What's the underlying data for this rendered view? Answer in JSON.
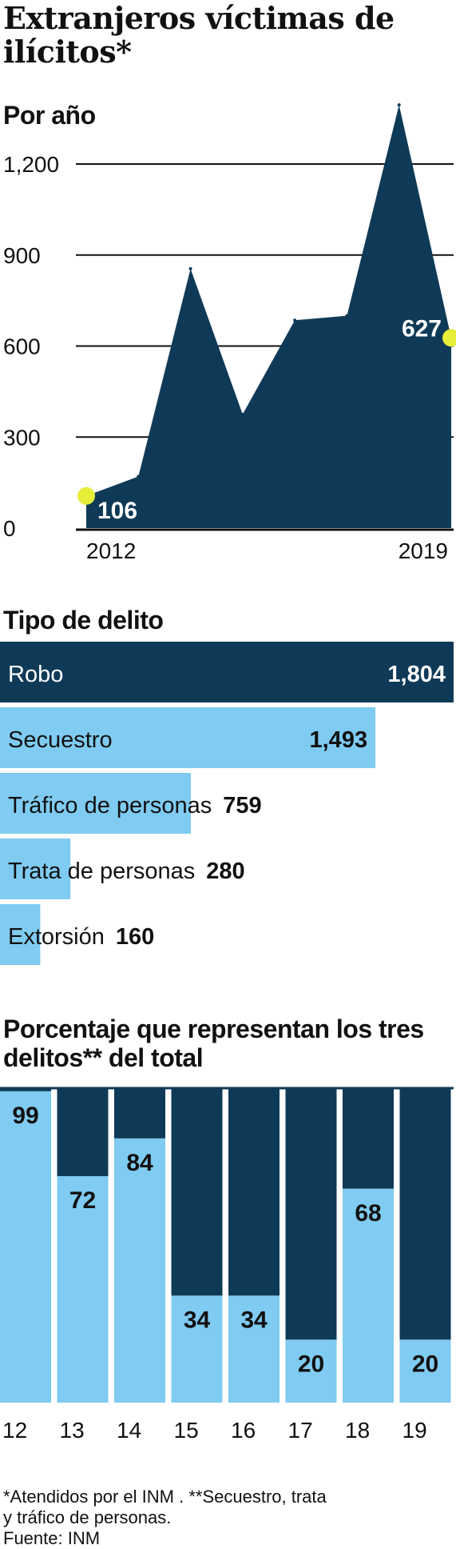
{
  "title": "Extranjeros víctimas de ilícitos*",
  "colors": {
    "dark": "#0f3a57",
    "light": "#7fcbf1",
    "highlight": "#e6ee3a",
    "grid": "#111111"
  },
  "chart_data": [
    {
      "type": "area",
      "title": "Por año",
      "x": [
        2012,
        2013,
        2014,
        2015,
        2016,
        2017,
        2018,
        2019
      ],
      "values": [
        106,
        170,
        855,
        375,
        685,
        700,
        1395,
        627
      ],
      "labeled_points": [
        {
          "x": 2012,
          "label": "106"
        },
        {
          "x": 2019,
          "label": "627"
        }
      ],
      "x_tick_labels": [
        "2012",
        "2019"
      ],
      "y_ticks": [
        0,
        300,
        600,
        900,
        1200
      ],
      "y_tick_labels": [
        "0",
        "300",
        "600",
        "900",
        "1,200"
      ],
      "ylim": [
        0,
        1400
      ],
      "grid": true
    },
    {
      "type": "bar",
      "title": "Tipo de delito",
      "categories": [
        "Robo",
        "Secuestro",
        "Tráfico de personas",
        "Trata de personas",
        "Extorsión"
      ],
      "values": [
        1804,
        1493,
        759,
        280,
        160
      ],
      "value_labels": [
        "1,804",
        "1,493",
        "759",
        "280",
        "160"
      ],
      "xlim": [
        0,
        1804
      ]
    },
    {
      "type": "bar",
      "title": "Porcentaje que representan los tres delitos** del total",
      "stacked": true,
      "categories": [
        "12",
        "13",
        "14",
        "15",
        "16",
        "17",
        "18",
        "19"
      ],
      "values": [
        99,
        72,
        84,
        34,
        34,
        20,
        68,
        20
      ],
      "value_labels": [
        "99",
        "72",
        "84",
        "34",
        "34",
        "20",
        "68",
        "20"
      ],
      "ylim": [
        0,
        100
      ]
    }
  ],
  "footnote": {
    "line1": "*Atendidos por el INM . **Secuestro, trata",
    "line2": "y tráfico de personas.",
    "line3": "Fuente: INM"
  }
}
